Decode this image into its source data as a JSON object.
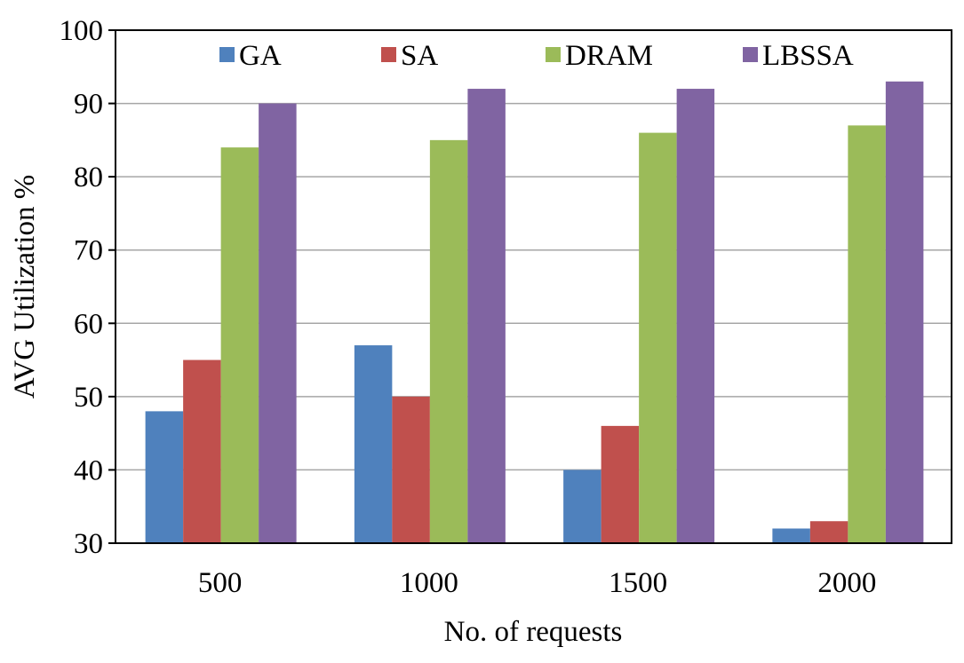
{
  "chart_data": {
    "type": "bar",
    "title": "",
    "xlabel": "No. of requests",
    "ylabel": "AVG Utilization %",
    "ylim": [
      30,
      100
    ],
    "yticks": [
      30,
      40,
      50,
      60,
      70,
      80,
      90,
      100
    ],
    "grid": true,
    "legend_position": "top",
    "categories": [
      "500",
      "1000",
      "1500",
      "2000"
    ],
    "series": [
      {
        "name": "GA",
        "color": "#4f81bd",
        "values": [
          48,
          57,
          40,
          32
        ]
      },
      {
        "name": "SA",
        "color": "#c0504d",
        "values": [
          55,
          50,
          46,
          33
        ]
      },
      {
        "name": "DRAM",
        "color": "#9bbb59",
        "values": [
          84,
          85,
          86,
          87
        ]
      },
      {
        "name": "LBSSA",
        "color": "#8064a2",
        "values": [
          90,
          92,
          92,
          93
        ]
      }
    ]
  }
}
